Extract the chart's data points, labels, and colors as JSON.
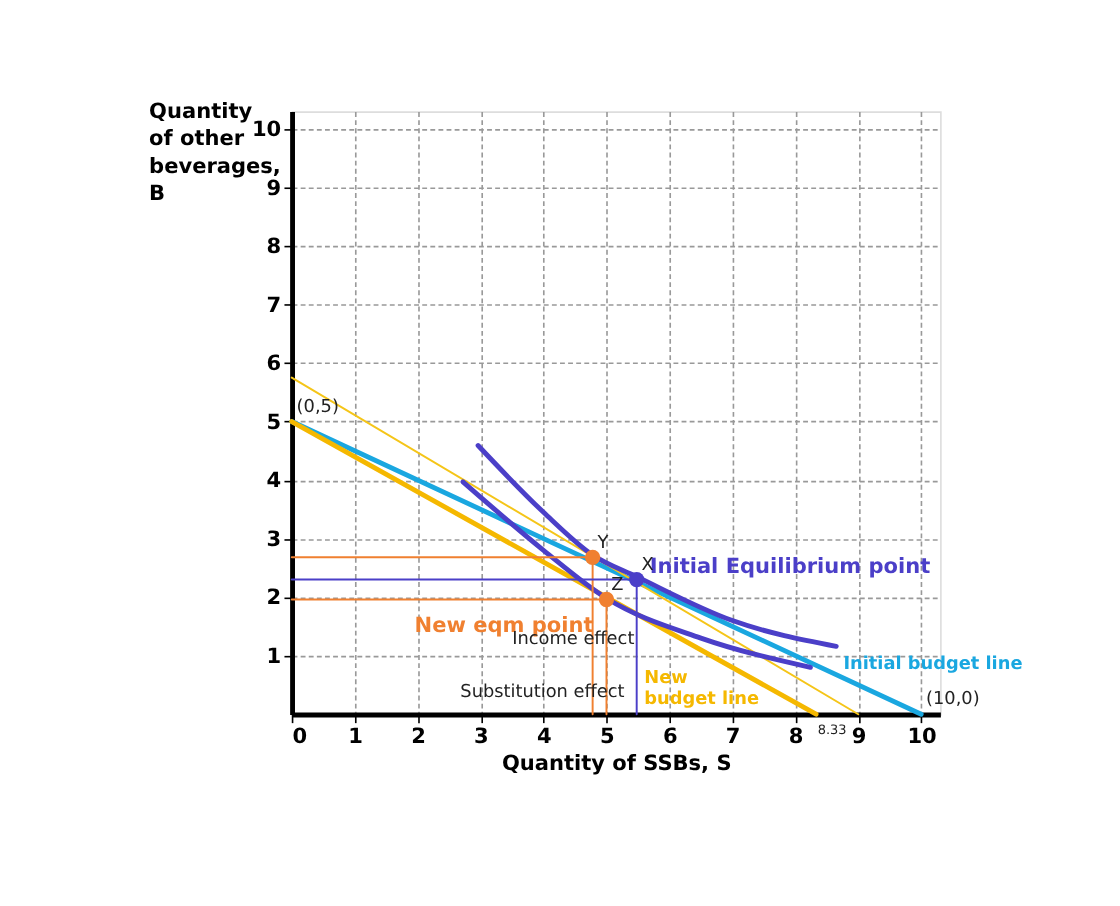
{
  "chart_data": {
    "type": "line",
    "xlabel": "Quantity of SSBs, S",
    "ylabel": "Quantity\nof other\nbeverages,\nB",
    "xlim": [
      0,
      10.3
    ],
    "ylim": [
      0,
      10.3
    ],
    "xticks": [
      0,
      1,
      2,
      3,
      4,
      5,
      6,
      7,
      8,
      9,
      10
    ],
    "yticks": [
      1,
      2,
      3,
      4,
      5,
      6,
      7,
      8,
      9,
      10
    ],
    "grid": true,
    "series": [
      {
        "name": "Initial budget line",
        "color": "#1aa7e0",
        "x": [
          0,
          10
        ],
        "values": [
          5,
          0
        ]
      },
      {
        "name": "New budget line",
        "color": "#f5b800",
        "x": [
          0,
          8.33
        ],
        "values": [
          5,
          0
        ]
      },
      {
        "color": "#f5c518",
        "x": [
          0,
          9
        ],
        "values": [
          5.75,
          0
        ]
      },
      {
        "color": "#4b3fc8",
        "x": [
          2.96,
          4,
          4.78,
          5.48,
          7,
          8.65
        ],
        "values": [
          4.59,
          3.45,
          2.72,
          2.35,
          1.6,
          1.16
        ]
      },
      {
        "color": "#4b3fc8",
        "x": [
          2.72,
          4,
          5,
          6.5,
          8.24
        ],
        "values": [
          3.97,
          2.8,
          1.98,
          1.3,
          0.8
        ]
      },
      {
        "color": "#f08030",
        "x": [
          0,
          4.78,
          4.78
        ],
        "values": [
          2.68,
          2.68,
          0
        ]
      },
      {
        "color": "#4b3fc8",
        "x": [
          0,
          5.48,
          5.48
        ],
        "values": [
          2.3,
          2.3,
          0
        ]
      },
      {
        "color": "#f08030",
        "x": [
          0,
          5,
          5
        ],
        "values": [
          1.96,
          1.96,
          0
        ]
      },
      {
        "type": "scatter",
        "name": "Initial Equilibrium point",
        "color": "#4b3fc8",
        "x": [
          5.48
        ],
        "values": [
          2.3
        ]
      },
      {
        "type": "scatter",
        "color": "#f08030",
        "x": [
          4.78
        ],
        "values": [
          2.68
        ]
      },
      {
        "type": "scatter",
        "name": "New eqm point",
        "color": "#f08030",
        "x": [
          5.0
        ],
        "values": [
          1.96
        ]
      }
    ],
    "annotations": [
      {
        "text": "(0,5)",
        "x": 0,
        "y": 5
      },
      {
        "text": "(10,0)",
        "x": 10,
        "y": 0
      },
      {
        "text": "8.33",
        "x": 8.33,
        "y": 0
      },
      {
        "text": "X",
        "x": 5.48,
        "y": 2.3
      },
      {
        "text": "Y",
        "x": 4.78,
        "y": 2.68
      },
      {
        "text": "Z",
        "x": 5.0,
        "y": 1.96
      },
      "Income effect",
      "Substitution effect"
    ]
  }
}
